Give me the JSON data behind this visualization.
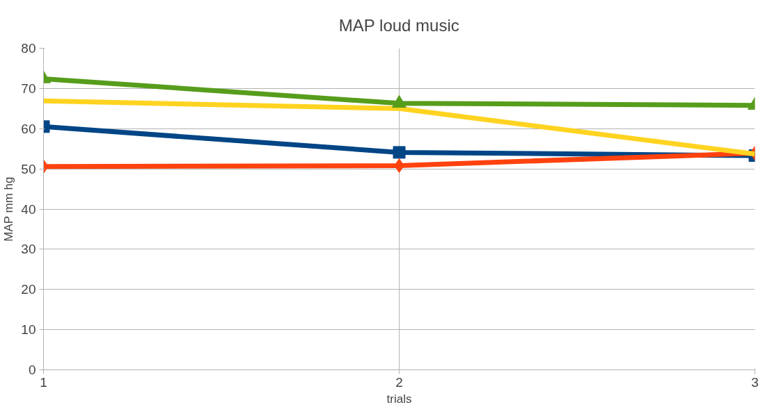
{
  "chart_data": {
    "type": "line",
    "title": "MAP loud music",
    "xlabel": "trials",
    "ylabel": "MAP mm hg",
    "x": [
      1,
      2,
      3
    ],
    "xlim": [
      1,
      3
    ],
    "xticks": [
      1,
      2,
      3
    ],
    "ylim": [
      0,
      80
    ],
    "yticks": [
      0,
      10,
      20,
      30,
      40,
      50,
      60,
      70,
      80
    ],
    "grid": true,
    "line_style": "solid",
    "series": [
      {
        "color": "#004586",
        "values": [
          60.5,
          54.1,
          53.3
        ],
        "marker": "square"
      },
      {
        "color": "#ff420e",
        "values": [
          50.6,
          50.8,
          53.9
        ],
        "marker": "diamond"
      },
      {
        "color": "#ffd320",
        "values": [
          66.9,
          65.0,
          53.7
        ],
        "marker": "none"
      },
      {
        "color": "#579d1c",
        "values": [
          72.4,
          66.3,
          65.8
        ],
        "marker": "triangle"
      }
    ]
  }
}
